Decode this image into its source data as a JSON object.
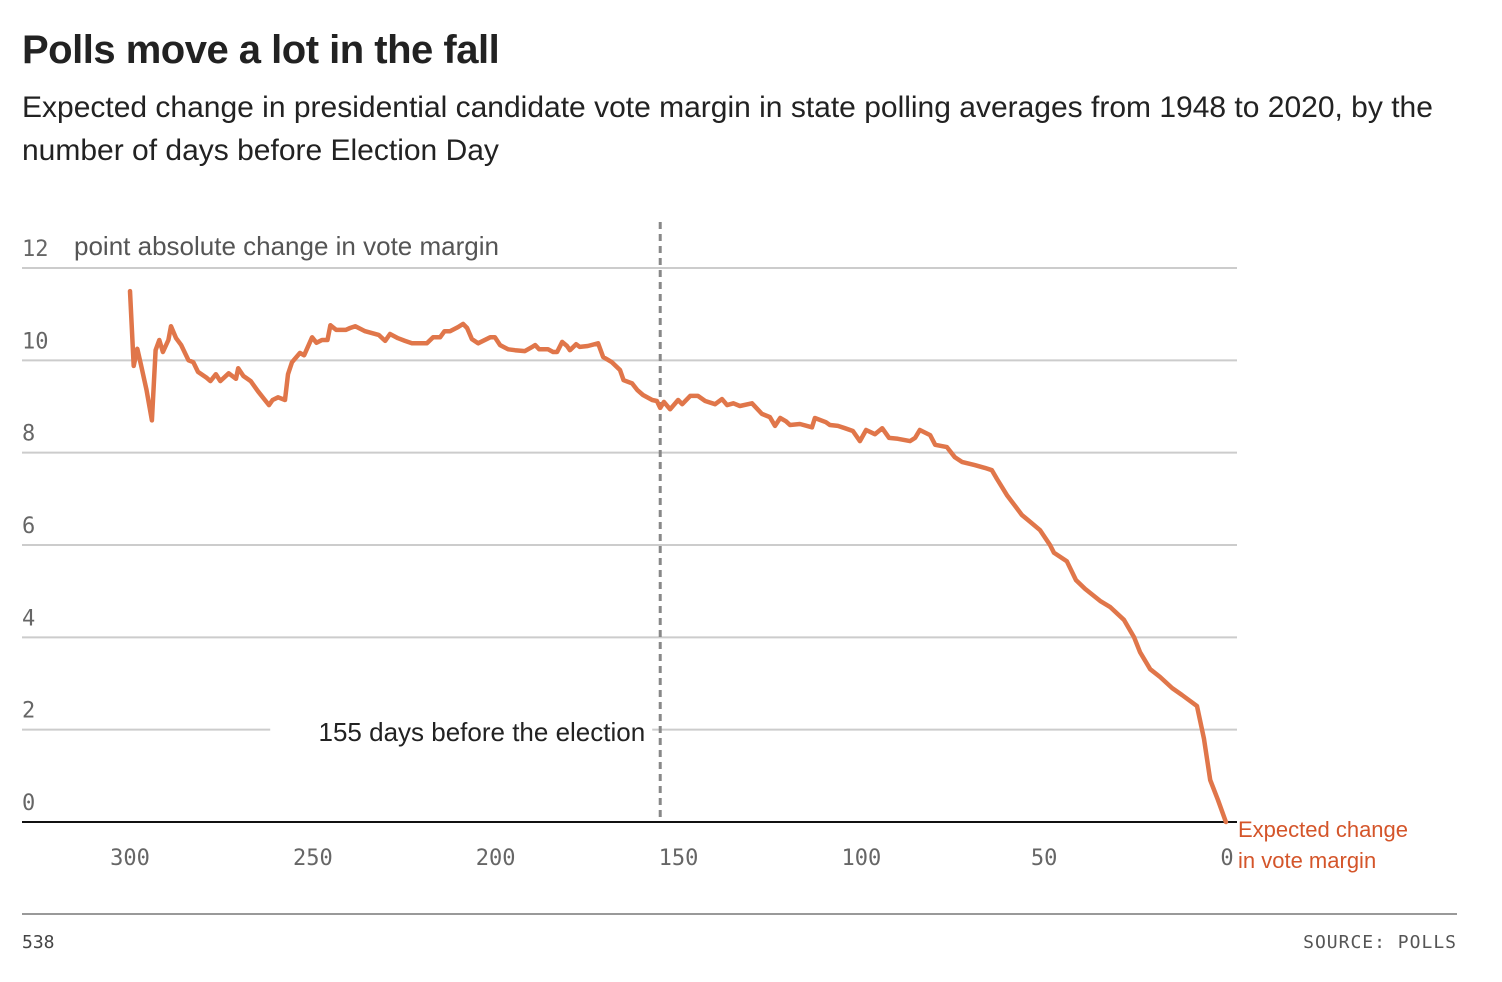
{
  "header": {
    "title": "Polls move a lot in the fall",
    "subtitle": "Expected change in presidential candidate vote margin in state polling averages from 1948 to 2020, by the number of days before Election Day"
  },
  "footer": {
    "credit": "538",
    "source": "SOURCE: POLLS"
  },
  "colors": {
    "line": "#e0764a",
    "end_label": "#d4552a",
    "grid": "#cccccc",
    "vline": "#888888"
  },
  "chart_data": {
    "type": "line",
    "title": "Polls move a lot in the fall",
    "ylabel": "point absolute change in vote margin",
    "xlabel": "",
    "xlim": [
      0,
      300
    ],
    "x_reversed": true,
    "ylim": [
      0,
      12
    ],
    "xticks": [
      "300",
      "250",
      "200",
      "150",
      "100",
      "50",
      "0"
    ],
    "yticks": [
      "0",
      "2",
      "4",
      "6",
      "8",
      "10",
      "12"
    ],
    "grid": true,
    "annotation": {
      "x": 155,
      "text": "155 days before the election"
    },
    "series": [
      {
        "name": "Expected change in vote margin",
        "label_lines": [
          "Expected change",
          "in vote margin"
        ],
        "x": [
          300,
          299,
          298,
          297,
          295.5,
          294,
          293,
          292,
          291,
          289.5,
          288.8,
          287.4,
          286,
          284,
          282.7,
          281.4,
          279,
          278,
          276.5,
          275.3,
          273,
          271,
          270.4,
          269,
          267,
          265,
          263.3,
          262,
          261,
          259.5,
          257.6,
          256.8,
          255.7,
          253.5,
          252.4,
          250.2,
          249,
          247.5,
          246,
          245.2,
          243.6,
          241,
          239.8,
          238.4,
          235.7,
          232,
          230.2,
          228.9,
          226.7,
          224.8,
          222.9,
          218.8,
          217.1,
          215.2,
          214,
          212.5,
          210.3,
          208.9,
          207.8,
          206.5,
          204.8,
          201.5,
          200.2,
          198.8,
          196.6,
          194.7,
          192,
          190,
          189.2,
          188.1,
          185.7,
          184.3,
          183.2,
          181.8,
          180.5,
          179.7,
          178,
          177,
          174.8,
          172,
          170.6,
          168.2,
          166,
          165,
          162.7,
          161.3,
          159.7,
          157.2,
          155.9,
          155,
          154,
          152.3,
          150.1,
          149,
          146.8,
          144.7,
          142.7,
          140,
          138.1,
          136.7,
          135,
          133.2,
          129.9,
          127.2,
          125,
          123.6,
          122.2,
          120.6,
          119.5,
          116.8,
          113.5,
          112.7,
          109.7,
          108.6,
          106.4,
          104.5,
          102.3,
          100.4,
          98.7,
          96.3,
          94.3,
          92.4,
          90,
          86.7,
          85.3,
          84,
          81.2,
          79.8,
          76.6,
          74.4,
          72.5,
          69,
          66.2,
          64.3,
          62.9,
          60.2,
          57.7,
          56.1,
          54.4,
          51.1,
          48.4,
          47.3,
          43.8,
          41.3,
          38.8,
          34.7,
          32,
          28.2,
          25.4,
          23.8,
          21,
          18.3,
          15,
          12.3,
          8.2,
          6.3,
          4.6,
          2.5,
          0.3
        ],
        "y": [
          11.5,
          9.88,
          10.25,
          9.9,
          9.36,
          8.7,
          10.22,
          10.44,
          10.18,
          10.44,
          10.74,
          10.48,
          10.33,
          10.0,
          9.96,
          9.75,
          9.62,
          9.55,
          9.7,
          9.55,
          9.72,
          9.6,
          9.83,
          9.66,
          9.55,
          9.33,
          9.16,
          9.03,
          9.14,
          9.2,
          9.14,
          9.7,
          9.96,
          10.16,
          10.11,
          10.5,
          10.38,
          10.44,
          10.44,
          10.76,
          10.66,
          10.66,
          10.7,
          10.74,
          10.63,
          10.55,
          10.42,
          10.57,
          10.48,
          10.42,
          10.37,
          10.37,
          10.5,
          10.5,
          10.63,
          10.63,
          10.72,
          10.79,
          10.7,
          10.46,
          10.37,
          10.5,
          10.5,
          10.33,
          10.24,
          10.22,
          10.2,
          10.29,
          10.33,
          10.24,
          10.24,
          10.18,
          10.18,
          10.4,
          10.31,
          10.22,
          10.35,
          10.29,
          10.31,
          10.37,
          10.07,
          9.96,
          9.79,
          9.57,
          9.5,
          9.36,
          9.25,
          9.14,
          9.12,
          8.97,
          9.1,
          8.94,
          9.14,
          9.05,
          9.23,
          9.23,
          9.12,
          9.05,
          9.16,
          9.03,
          9.07,
          9.01,
          9.07,
          8.84,
          8.77,
          8.58,
          8.75,
          8.68,
          8.6,
          8.62,
          8.55,
          8.75,
          8.66,
          8.6,
          8.58,
          8.53,
          8.47,
          8.25,
          8.49,
          8.4,
          8.53,
          8.32,
          8.3,
          8.25,
          8.32,
          8.49,
          8.38,
          8.17,
          8.12,
          7.9,
          7.8,
          7.73,
          7.67,
          7.62,
          7.43,
          7.08,
          6.82,
          6.65,
          6.54,
          6.32,
          6.0,
          5.83,
          5.65,
          5.24,
          5.05,
          4.79,
          4.66,
          4.38,
          4.0,
          3.68,
          3.31,
          3.14,
          2.9,
          2.75,
          2.51,
          1.8,
          0.91,
          0.48,
          0
        ]
      }
    ]
  }
}
